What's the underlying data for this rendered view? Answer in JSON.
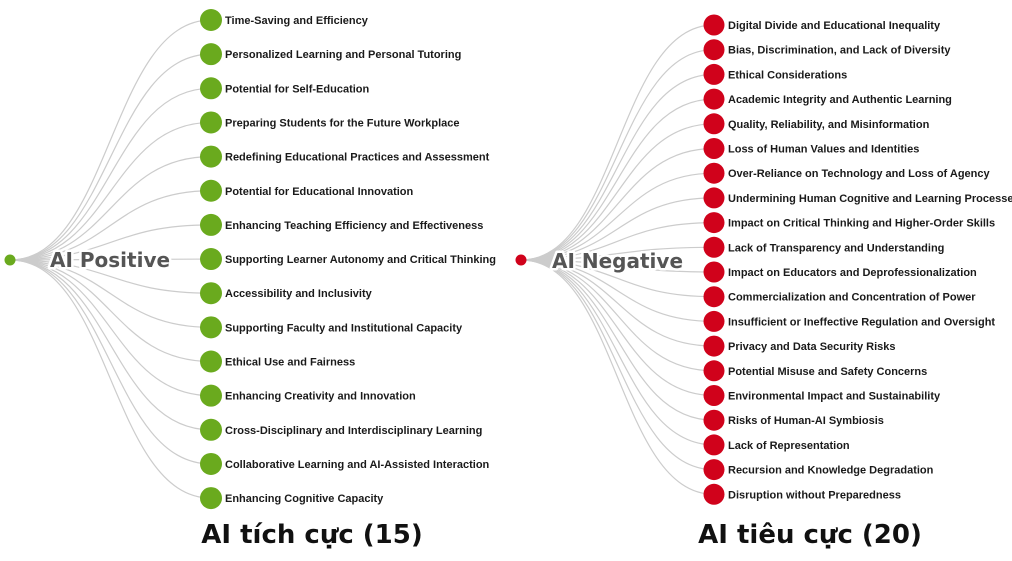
{
  "trees": [
    {
      "root_label": "AI Positive",
      "node_color": "#6aaa1e",
      "caption": "AI tích cực (15)",
      "items": [
        "Time-Saving and Efficiency",
        "Personalized Learning and Personal Tutoring",
        "Potential for Self-Education",
        "Preparing Students for the Future Workplace",
        "Redefining Educational Practices and Assessment",
        "Potential for Educational Innovation",
        "Enhancing Teaching Efficiency and Effectiveness",
        "Supporting Learner Autonomy and Critical Thinking",
        "Accessibility and Inclusivity",
        "Supporting Faculty and Institutional Capacity",
        "Ethical Use and Fairness",
        "Enhancing Creativity and Innovation",
        "Cross-Disciplinary and Interdisciplinary Learning",
        "Collaborative Learning and AI-Assisted Interaction",
        "Enhancing Cognitive Capacity"
      ]
    },
    {
      "root_label": "AI Negative",
      "node_color": "#d0021b",
      "caption": "AI tiêu cực (20)",
      "items": [
        "Digital Divide and Educational Inequality",
        "Bias, Discrimination, and Lack of Diversity",
        "Ethical Considerations",
        "Academic Integrity and Authentic Learning",
        "Quality, Reliability, and Misinformation",
        "Loss of Human Values and Identities",
        "Over-Reliance on Technology and Loss of Agency",
        "Undermining Human Cognitive and Learning Processes",
        "Impact on Critical Thinking and Higher-Order Skills",
        "Lack of Transparency and Understanding",
        "Impact on Educators and Deprofessionalization",
        "Commercialization and Concentration of Power",
        "Insufficient or Ineffective Regulation and Oversight",
        "Privacy and Data Security Risks",
        "Potential Misuse and Safety Concerns",
        "Environmental Impact and Sustainability",
        "Risks of Human-AI Symbiosis",
        "Lack of Representation",
        "Recursion and Knowledge Degradation",
        "Disruption without Preparedness"
      ]
    }
  ]
}
